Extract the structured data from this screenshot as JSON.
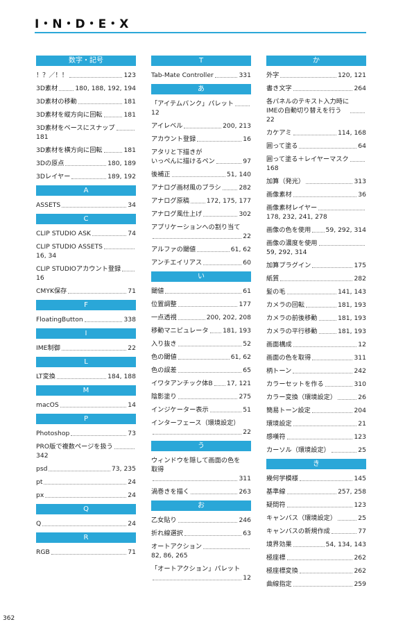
{
  "header": {
    "title": "I・N・D・E・X"
  },
  "columns": [
    [
      {
        "heading": "数字・記号",
        "entries": [
          {
            "term": "！？／！！",
            "pages": "123"
          },
          {
            "term": "3D素材",
            "pages": "180, 188, 192, 194"
          },
          {
            "term": "3D素材の移動",
            "pages": "181"
          },
          {
            "term": "3D素材を縦方向に回転",
            "pages": "181"
          },
          {
            "term": "3D素材をベースにスナップ",
            "pages": "181"
          },
          {
            "term": "3D素材を横方向に回転",
            "pages": "181"
          },
          {
            "term": "3Dの原点",
            "pages": "180, 189"
          },
          {
            "term": "3Dレイヤー",
            "pages": "189, 192"
          }
        ]
      },
      {
        "heading": "A",
        "entries": [
          {
            "term": "ASSETS",
            "pages": "34"
          }
        ]
      },
      {
        "heading": "C",
        "entries": [
          {
            "term": "CLIP STUDIO ASK",
            "pages": "74"
          },
          {
            "term": "CLIP STUDIO ASSETS",
            "pages": "16, 34"
          },
          {
            "term": "CLIP STUDIOアカウント登録",
            "pages": "16"
          },
          {
            "term": "CMYK保存",
            "pages": "71"
          }
        ]
      },
      {
        "heading": "F",
        "entries": [
          {
            "term": "FloatingButton",
            "pages": "338"
          }
        ]
      },
      {
        "heading": "I",
        "entries": [
          {
            "term": "IME制御",
            "pages": "22"
          }
        ]
      },
      {
        "heading": "L",
        "entries": [
          {
            "term": "LT変換",
            "pages": "184, 188"
          }
        ]
      },
      {
        "heading": "M",
        "entries": [
          {
            "term": "macOS",
            "pages": "14"
          }
        ]
      },
      {
        "heading": "P",
        "entries": [
          {
            "term": "Photoshop",
            "pages": "73"
          },
          {
            "term": "PRO版で複数ページを扱う",
            "pages": "342"
          },
          {
            "term": "psd",
            "pages": "73, 235"
          },
          {
            "term": "pt",
            "pages": "24"
          },
          {
            "term": "px",
            "pages": "24"
          }
        ]
      },
      {
        "heading": "Q",
        "entries": [
          {
            "term": "Q",
            "pages": "24"
          }
        ]
      },
      {
        "heading": "R",
        "entries": [
          {
            "term": "RGB",
            "pages": "71"
          }
        ]
      }
    ],
    [
      {
        "heading": "T",
        "entries": [
          {
            "term": "Tab-Mate Controller",
            "pages": "331"
          }
        ]
      },
      {
        "heading": "あ",
        "entries": [
          {
            "term": "「アイテムバンク」パレット",
            "pages": "12"
          },
          {
            "term": "アイレベル",
            "pages": "200, 213"
          },
          {
            "term": "アカウント登録",
            "pages": "16"
          },
          {
            "term": "アタリと下描きが\nいっぺんに描けるペン",
            "pages": "97"
          },
          {
            "term": "後補正",
            "pages": "51, 140"
          },
          {
            "term": "アナログ画材風のブラシ",
            "pages": "282"
          },
          {
            "term": "アナログ原稿",
            "pages": "172, 175, 177"
          },
          {
            "term": "アナログ風仕上げ",
            "pages": "302"
          },
          {
            "term": "アプリケーションへの割り当て",
            "pages": "22"
          },
          {
            "term": "アルファの閾値",
            "pages": "61, 62"
          },
          {
            "term": "アンチエイリアス",
            "pages": "60"
          }
        ]
      },
      {
        "heading": "い",
        "entries": [
          {
            "term": "閾値",
            "pages": "61"
          },
          {
            "term": "位置調整",
            "pages": "177"
          },
          {
            "term": "一点透視",
            "pages": "200, 202, 208"
          },
          {
            "term": "移動マニピュレータ",
            "pages": "181, 193"
          },
          {
            "term": "入り抜き",
            "pages": "52"
          },
          {
            "term": "色の閾値",
            "pages": "61, 62"
          },
          {
            "term": "色の誤差",
            "pages": "65"
          },
          {
            "term": "イワタアンチック体B",
            "pages": "17, 121"
          },
          {
            "term": "陰影塗り",
            "pages": "275"
          },
          {
            "term": "インジケーター表示",
            "pages": "51"
          },
          {
            "term": "インターフェース（環境設定）",
            "pages": "22"
          }
        ]
      },
      {
        "heading": "う",
        "entries": [
          {
            "term": "ウィンドウを隠して画面の色を\n取得",
            "pages": "311"
          },
          {
            "term": "渦巻きを描く",
            "pages": "263"
          }
        ]
      },
      {
        "heading": "お",
        "entries": [
          {
            "term": "乙女貼り",
            "pages": "246"
          },
          {
            "term": "折れ線選択",
            "pages": "63"
          },
          {
            "term": "オートアクション",
            "pages": "82, 86, 265"
          },
          {
            "term": "「オートアクション」パレット",
            "pages": "12"
          }
        ]
      }
    ],
    [
      {
        "heading": "か",
        "entries": [
          {
            "term": "外字",
            "pages": "120, 121"
          },
          {
            "term": "書き文字",
            "pages": "264"
          },
          {
            "term": "各パネルのテキスト入力時に\nIMEの自動切り替えを行う",
            "pages": "22"
          },
          {
            "term": "カケアミ",
            "pages": "114, 168"
          },
          {
            "term": "囲って塗る",
            "pages": "64"
          },
          {
            "term": "囲って塗る＋レイヤーマスク",
            "pages": "168"
          },
          {
            "term": "加算（発光）",
            "pages": "313"
          },
          {
            "term": "画像素材",
            "pages": "36"
          },
          {
            "term": "画像素材レイヤー",
            "pages": "178, 232, 241, 278"
          },
          {
            "term": "画像の色を使用",
            "pages": "59, 292, 314"
          },
          {
            "term": "画像の濃度を使用",
            "pages": "59, 292, 314"
          },
          {
            "term": "加算プラグイン",
            "pages": "175"
          },
          {
            "term": "紙質",
            "pages": "282"
          },
          {
            "term": "髪の毛",
            "pages": "141, 143"
          },
          {
            "term": "カメラの回転",
            "pages": "181, 193"
          },
          {
            "term": "カメラの前後移動",
            "pages": "181, 193"
          },
          {
            "term": "カメラの平行移動",
            "pages": "181, 193"
          },
          {
            "term": "画面構成",
            "pages": "12"
          },
          {
            "term": "画面の色を取得",
            "pages": "311"
          },
          {
            "term": "柄トーン",
            "pages": "242"
          },
          {
            "term": "カラーセットを作る",
            "pages": "310"
          },
          {
            "term": "カラー変換（環境設定）",
            "pages": "26"
          },
          {
            "term": "簡易トーン設定",
            "pages": "204"
          },
          {
            "term": "環境設定",
            "pages": "21"
          },
          {
            "term": "感嘆符",
            "pages": "123"
          },
          {
            "term": "カーソル（環境設定）",
            "pages": "25"
          }
        ]
      },
      {
        "heading": "き",
        "entries": [
          {
            "term": "幾何学模様",
            "pages": "145"
          },
          {
            "term": "基準線",
            "pages": "257, 258"
          },
          {
            "term": "疑問符",
            "pages": "123"
          },
          {
            "term": "キャンバス（環境設定）",
            "pages": "25"
          },
          {
            "term": "キャンバスの新規作成",
            "pages": "77"
          },
          {
            "term": "境界効果",
            "pages": "54, 134, 143"
          },
          {
            "term": "極座標",
            "pages": "262"
          },
          {
            "term": "極座標変換",
            "pages": "262"
          },
          {
            "term": "曲線指定",
            "pages": "259"
          }
        ]
      }
    ]
  ],
  "footer": {
    "page_number": "362"
  }
}
